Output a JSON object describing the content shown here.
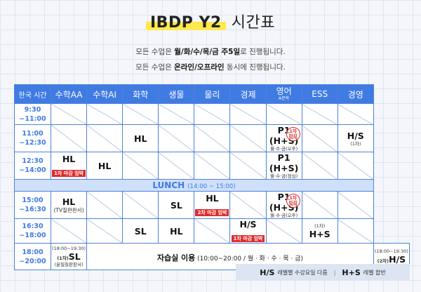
{
  "title": {
    "main": "IBDP Y2",
    "sub": "시간표"
  },
  "notice": {
    "line1_pre": "모든 수업은 ",
    "line1_bold": "월/화/수/목/금 주5일",
    "line1_post": "로 진행됩니다.",
    "line2_pre": "모든 수업은 ",
    "line2_bold": "온라인/오프라인",
    "line2_post": " 동시에 진행됩니다."
  },
  "headers": {
    "time": "한국 시간",
    "math_aa": "수학AA",
    "math_ai": "수학AI",
    "chem": "화학",
    "bio": "생물",
    "phys": "물리",
    "econ": "경제",
    "eng_sub": "A문학",
    "eng": "영어",
    "ess": "ESS",
    "bm": "경영"
  },
  "times": {
    "r1a": "9:30",
    "r1b": "~11:00",
    "r2a": "11:00",
    "r2b": "~12:30",
    "r3a": "12:30",
    "r3b": "~14:00",
    "r4a": "15:00",
    "r4b": "~16:30",
    "r5a": "16:30",
    "r5b": "~18:00",
    "r6a": "18:00",
    "r6b": "~20:00"
  },
  "cells": {
    "r2_chem": "HL",
    "r2_eng": "P1 (H+S)",
    "r2_eng_sub": "월·수·금(오후)",
    "r2_eng_stamp1": "1차",
    "r2_eng_stamp2": "마감",
    "r2_bm": "H/S",
    "r2_bm_sub": "(1차)",
    "r3_aa": "HL",
    "r3_aa_badge": "1차 마감 임박",
    "r3_ai": "HL",
    "r3_eng": "P1 (H+S)",
    "r3_eng_sub": "월·수·금(점심)",
    "lunch": "LUNCH",
    "lunch_time": "(14:00 ~ 15:00)",
    "r4_aa": "HL",
    "r4_aa_sub": "(TV칠판판서)",
    "r4_bio": "SL",
    "r4_phys": "HL",
    "r4_phys_badge": "2차 마감 임박",
    "r4_eng": "P1 (H+S)",
    "r4_eng_sub": "월·수·금(오후)",
    "r4_eng_stamp1": "1차",
    "r4_eng_stamp2": "마감",
    "r5_chem": "SL",
    "r5_bio": "HL",
    "r5_econ": "H/S",
    "r5_econ_badge": "1차 마감 임박",
    "r5_ess_sub": "(1차)",
    "r5_ess": "H+S",
    "r6_aa_time": "(18:00~19:30)",
    "r6_aa_pre": "(1차)",
    "r6_aa": "SL",
    "r6_aa_sub": "(분필칠판판서)",
    "r6_study": "자습실 이용",
    "r6_study_sub": " (10:00~20:00 / 월 · 화 · 수 · 목 · 금)",
    "r6_bm_time": "(18:00~19:30)",
    "r6_bm_pre": "(2차)",
    "r6_bm": "H/S"
  },
  "legend": {
    "k1": "H/S",
    "v1": "레벨별 수강요일 다름",
    "k2": "H+S",
    "v2": "레벨 합반"
  },
  "colors": {
    "header": "#3f7be3",
    "lunch_bg": "#cfe0fb",
    "badge": "#e02b2b",
    "highlight": "#ffe94d"
  }
}
